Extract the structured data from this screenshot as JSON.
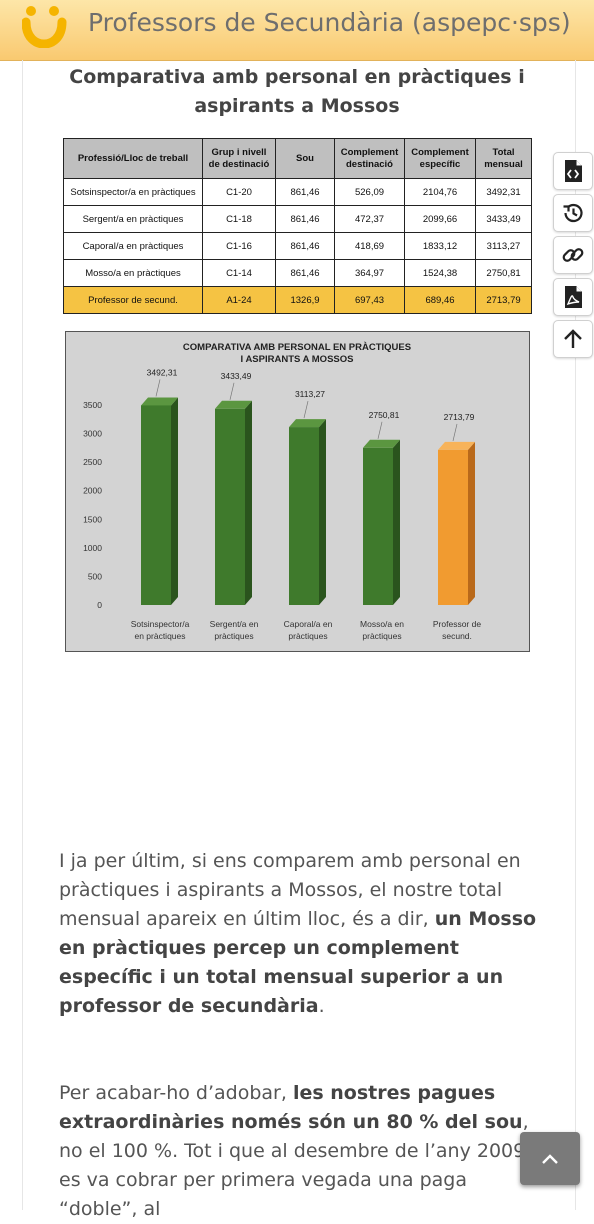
{
  "header": {
    "site_title": "Professors de Secundària (aspepc·sps)"
  },
  "article": {
    "heading": "Comparativa amb personal en pràctiques i aspirants a Mossos",
    "table": {
      "headers": [
        "Professió/Lloc de treball",
        "Grup i nivell de destinació",
        "Sou",
        "Complement destinació",
        "Complement específic",
        "Total mensual"
      ],
      "rows": [
        [
          "Sotsinspector/a en pràctiques",
          "C1-20",
          "861,46",
          "526,09",
          "2104,76",
          "3492,31"
        ],
        [
          "Sergent/a en pràctiques",
          "C1-18",
          "861,46",
          "472,37",
          "2099,66",
          "3433,49"
        ],
        [
          "Caporal/a en pràctiques",
          "C1-16",
          "861,46",
          "418,69",
          "1833,12",
          "3113,27"
        ],
        [
          "Mosso/a en pràctiques",
          "C1-14",
          "861,46",
          "364,97",
          "1524,38",
          "2750,81"
        ],
        [
          "Professor de secund.",
          "A1-24",
          "1326,9",
          "697,43",
          "689,46",
          "2713,79"
        ]
      ]
    },
    "para1": {
      "t1": "I ja per últim, si ens comparem amb personal en pràctiques i aspirants a Mossos, el nostre total mensual apareix en últim lloc, és a dir, ",
      "b1": "un Mosso en pràctiques percep un complement específic i un total mensual superior a un professor de secundària",
      "t2": "."
    },
    "para2": {
      "t1": "Per acabar-ho d’adobar, ",
      "b1": "les nostres pagues extraordinàries només són un 80 % del sou",
      "t2": ", no el 100 %. Tot i que al desembre de l’any 2009 es va cobrar per primera vegada una paga “doble”, al"
    }
  },
  "sidebar": {
    "icons": [
      "file-code-icon",
      "history-icon",
      "link-icon",
      "pdf-icon",
      "arrow-up-icon"
    ]
  },
  "colors": {
    "header_top": "#fde6a8",
    "header_bottom": "#f9c970",
    "bar_green": "#3f7a2c",
    "bar_orange": "#f19b30",
    "highlight_row": "#f5c343"
  },
  "chart_data": {
    "type": "bar",
    "title_lines": [
      "COMPARATIVA AMB PERSONAL EN PRÀCTIQUES",
      "I ASPIRANTS A MOSSOS"
    ],
    "categories": [
      [
        "Sotsinspector/a",
        "en pràctiques"
      ],
      [
        "Sergent/a en",
        "pràctiques"
      ],
      [
        "Caporal/a en",
        "pràctiques"
      ],
      [
        "Mosso/a en",
        "pràctiques"
      ],
      [
        "Professor de",
        "secund."
      ]
    ],
    "values": [
      3492.31,
      3433.49,
      3113.27,
      2750.81,
      2713.79
    ],
    "value_labels": [
      "3492,31",
      "3433,49",
      "3113,27",
      "2750,81",
      "2713,79"
    ],
    "bar_colors": [
      "#3f7a2c",
      "#3f7a2c",
      "#3f7a2c",
      "#3f7a2c",
      "#f19b30"
    ],
    "yticks": [
      0,
      500,
      1000,
      1500,
      2000,
      2500,
      3000,
      3500
    ],
    "ylim": [
      0,
      3500
    ],
    "grid": false,
    "legend": "none"
  }
}
